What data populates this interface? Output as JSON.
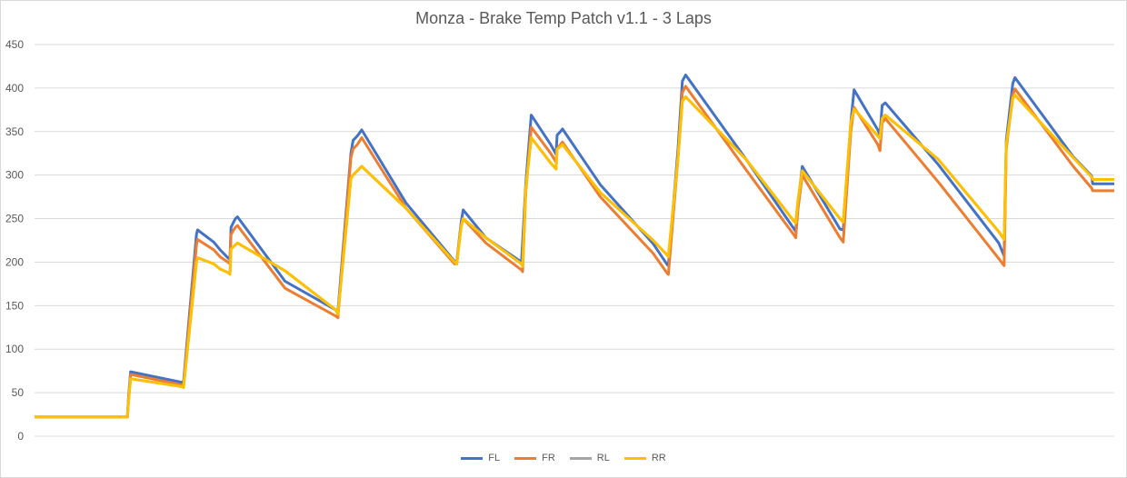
{
  "chart_data": {
    "type": "line",
    "title": "Monza - Brake Temp Patch v1.1 - 3 Laps",
    "xlabel": "",
    "ylabel": "",
    "ylim": [
      0,
      450
    ],
    "yticks": [
      0,
      50,
      100,
      150,
      200,
      250,
      300,
      350,
      400,
      450
    ],
    "x_count": 1000,
    "grid": true,
    "legend_position": "bottom",
    "series": [
      {
        "name": "FL",
        "color": "#4472C4",
        "points": [
          [
            0,
            22
          ],
          [
            86,
            22
          ],
          [
            87,
            45
          ],
          [
            89,
            74
          ],
          [
            136,
            62
          ],
          [
            138,
            62
          ],
          [
            150,
            232
          ],
          [
            151,
            237
          ],
          [
            166,
            223
          ],
          [
            172,
            214
          ],
          [
            179,
            205
          ],
          [
            181,
            203
          ],
          [
            182,
            240
          ],
          [
            186,
            250
          ],
          [
            188,
            252
          ],
          [
            232,
            178
          ],
          [
            279,
            145
          ],
          [
            281,
            143
          ],
          [
            293,
            325
          ],
          [
            295,
            340
          ],
          [
            299,
            345
          ],
          [
            303,
            352
          ],
          [
            344,
            268
          ],
          [
            389,
            201
          ],
          [
            391,
            200
          ],
          [
            395,
            245
          ],
          [
            397,
            260
          ],
          [
            418,
            228
          ],
          [
            451,
            200
          ],
          [
            455,
            290
          ],
          [
            460,
            369
          ],
          [
            478,
            335
          ],
          [
            483,
            324
          ],
          [
            484,
            346
          ],
          [
            487,
            350
          ],
          [
            489,
            353
          ],
          [
            524,
            289
          ],
          [
            573,
            221
          ],
          [
            586,
            197
          ],
          [
            587,
            196
          ],
          [
            596,
            330
          ],
          [
            600,
            408
          ],
          [
            603,
            415
          ],
          [
            659,
            318
          ],
          [
            704,
            237
          ],
          [
            705,
            235
          ],
          [
            707,
            265
          ],
          [
            711,
            310
          ],
          [
            746,
            238
          ],
          [
            749,
            237
          ],
          [
            756,
            360
          ],
          [
            759,
            398
          ],
          [
            781,
            352
          ],
          [
            783,
            346
          ],
          [
            785,
            380
          ],
          [
            788,
            383
          ],
          [
            837,
            312
          ],
          [
            893,
            222
          ],
          [
            898,
            207
          ],
          [
            900,
            340
          ],
          [
            906,
            405
          ],
          [
            908,
            412
          ],
          [
            962,
            321
          ],
          [
            979,
            299
          ],
          [
            980,
            290
          ],
          [
            1000,
            290
          ]
        ]
      },
      {
        "name": "FR",
        "color": "#ED7D31",
        "points": [
          [
            0,
            22
          ],
          [
            86,
            22
          ],
          [
            87,
            42
          ],
          [
            89,
            71
          ],
          [
            136,
            59
          ],
          [
            138,
            58
          ],
          [
            150,
            220
          ],
          [
            151,
            226
          ],
          [
            166,
            214
          ],
          [
            172,
            206
          ],
          [
            179,
            200
          ],
          [
            181,
            198
          ],
          [
            182,
            232
          ],
          [
            186,
            240
          ],
          [
            188,
            242
          ],
          [
            232,
            170
          ],
          [
            279,
            138
          ],
          [
            281,
            136
          ],
          [
            293,
            320
          ],
          [
            295,
            330
          ],
          [
            299,
            335
          ],
          [
            303,
            343
          ],
          [
            344,
            262
          ],
          [
            389,
            198
          ],
          [
            391,
            198
          ],
          [
            395,
            242
          ],
          [
            397,
            250
          ],
          [
            418,
            222
          ],
          [
            451,
            191
          ],
          [
            452,
            189
          ],
          [
            455,
            280
          ],
          [
            460,
            355
          ],
          [
            478,
            325
          ],
          [
            483,
            315
          ],
          [
            484,
            330
          ],
          [
            487,
            335
          ],
          [
            489,
            338
          ],
          [
            524,
            275
          ],
          [
            573,
            210
          ],
          [
            586,
            187
          ],
          [
            587,
            186
          ],
          [
            596,
            320
          ],
          [
            600,
            395
          ],
          [
            603,
            402
          ],
          [
            659,
            306
          ],
          [
            704,
            230
          ],
          [
            705,
            228
          ],
          [
            707,
            260
          ],
          [
            711,
            300
          ],
          [
            746,
            228
          ],
          [
            749,
            223
          ],
          [
            756,
            350
          ],
          [
            759,
            378
          ],
          [
            781,
            335
          ],
          [
            783,
            328
          ],
          [
            785,
            360
          ],
          [
            788,
            365
          ],
          [
            837,
            292
          ],
          [
            893,
            204
          ],
          [
            898,
            196
          ],
          [
            900,
            330
          ],
          [
            906,
            392
          ],
          [
            908,
            399
          ],
          [
            962,
            310
          ],
          [
            979,
            285
          ],
          [
            980,
            282
          ],
          [
            1000,
            282
          ]
        ]
      },
      {
        "name": "RL",
        "color": "#A5A5A5",
        "points": [
          [
            0,
            22
          ],
          [
            86,
            22
          ],
          [
            87,
            40
          ],
          [
            89,
            66
          ],
          [
            136,
            57
          ],
          [
            138,
            56
          ],
          [
            150,
            200
          ],
          [
            151,
            205
          ],
          [
            166,
            198
          ],
          [
            172,
            192
          ],
          [
            179,
            188
          ],
          [
            181,
            186
          ],
          [
            182,
            215
          ],
          [
            186,
            220
          ],
          [
            188,
            222
          ],
          [
            232,
            190
          ],
          [
            279,
            145
          ],
          [
            281,
            140
          ],
          [
            293,
            296
          ],
          [
            295,
            300
          ],
          [
            299,
            305
          ],
          [
            303,
            310
          ],
          [
            344,
            262
          ],
          [
            389,
            200
          ],
          [
            391,
            198
          ],
          [
            395,
            240
          ],
          [
            397,
            250
          ],
          [
            418,
            228
          ],
          [
            451,
            198
          ],
          [
            452,
            195
          ],
          [
            455,
            285
          ],
          [
            460,
            343
          ],
          [
            478,
            314
          ],
          [
            483,
            307
          ],
          [
            484,
            330
          ],
          [
            487,
            333
          ],
          [
            489,
            335
          ],
          [
            524,
            280
          ],
          [
            573,
            225
          ],
          [
            586,
            208
          ],
          [
            587,
            206
          ],
          [
            596,
            320
          ],
          [
            600,
            385
          ],
          [
            603,
            390
          ],
          [
            659,
            318
          ],
          [
            704,
            246
          ],
          [
            705,
            245
          ],
          [
            707,
            270
          ],
          [
            711,
            305
          ],
          [
            746,
            250
          ],
          [
            749,
            246
          ],
          [
            756,
            360
          ],
          [
            759,
            376
          ],
          [
            781,
            345
          ],
          [
            783,
            342
          ],
          [
            785,
            365
          ],
          [
            788,
            369
          ],
          [
            837,
            318
          ],
          [
            893,
            235
          ],
          [
            898,
            226
          ],
          [
            900,
            335
          ],
          [
            906,
            388
          ],
          [
            908,
            392
          ],
          [
            962,
            320
          ],
          [
            979,
            298
          ],
          [
            980,
            295
          ],
          [
            1000,
            295
          ]
        ]
      },
      {
        "name": "RR",
        "color": "#FFC000",
        "points": [
          [
            0,
            22
          ],
          [
            86,
            22
          ],
          [
            87,
            40
          ],
          [
            89,
            66
          ],
          [
            136,
            57
          ],
          [
            138,
            56
          ],
          [
            150,
            200
          ],
          [
            151,
            205
          ],
          [
            166,
            198
          ],
          [
            172,
            192
          ],
          [
            179,
            188
          ],
          [
            181,
            186
          ],
          [
            182,
            215
          ],
          [
            186,
            220
          ],
          [
            188,
            222
          ],
          [
            232,
            190
          ],
          [
            279,
            145
          ],
          [
            281,
            140
          ],
          [
            293,
            296
          ],
          [
            295,
            300
          ],
          [
            299,
            305
          ],
          [
            303,
            310
          ],
          [
            344,
            262
          ],
          [
            389,
            200
          ],
          [
            391,
            198
          ],
          [
            395,
            240
          ],
          [
            397,
            250
          ],
          [
            418,
            228
          ],
          [
            451,
            198
          ],
          [
            452,
            195
          ],
          [
            455,
            285
          ],
          [
            460,
            343
          ],
          [
            478,
            314
          ],
          [
            483,
            307
          ],
          [
            484,
            330
          ],
          [
            487,
            333
          ],
          [
            489,
            335
          ],
          [
            524,
            280
          ],
          [
            573,
            225
          ],
          [
            586,
            208
          ],
          [
            587,
            206
          ],
          [
            596,
            320
          ],
          [
            600,
            385
          ],
          [
            603,
            390
          ],
          [
            659,
            318
          ],
          [
            704,
            246
          ],
          [
            705,
            245
          ],
          [
            707,
            270
          ],
          [
            711,
            305
          ],
          [
            746,
            250
          ],
          [
            749,
            246
          ],
          [
            756,
            360
          ],
          [
            759,
            376
          ],
          [
            781,
            345
          ],
          [
            783,
            342
          ],
          [
            785,
            365
          ],
          [
            788,
            369
          ],
          [
            837,
            318
          ],
          [
            893,
            235
          ],
          [
            898,
            226
          ],
          [
            900,
            335
          ],
          [
            906,
            388
          ],
          [
            908,
            392
          ],
          [
            962,
            320
          ],
          [
            979,
            298
          ],
          [
            980,
            295
          ],
          [
            1000,
            295
          ]
        ]
      }
    ]
  }
}
